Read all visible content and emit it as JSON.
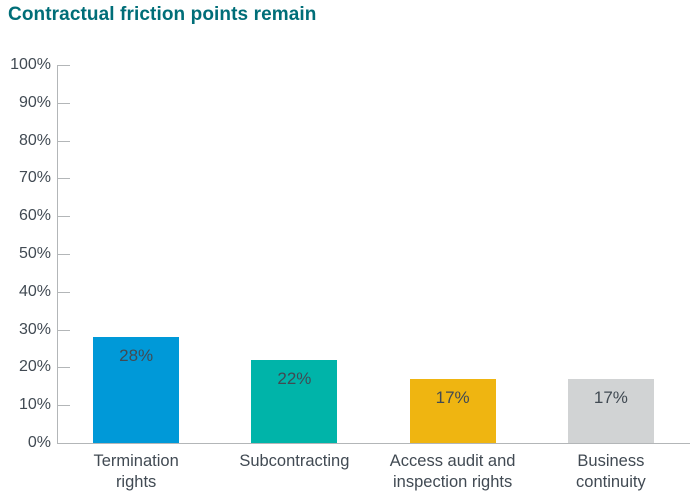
{
  "chart_data": {
    "type": "bar",
    "title": "Contractual friction points remain",
    "categories": [
      "Termination rights",
      "Subcontracting",
      "Access audit and inspection rights",
      "Business continuity"
    ],
    "category_label_lines": [
      [
        "Termination",
        "rights"
      ],
      [
        "Subcontracting"
      ],
      [
        "Access audit and",
        "inspection rights"
      ],
      [
        "Business",
        "continuity"
      ]
    ],
    "values": [
      28,
      22,
      17,
      17
    ],
    "value_labels": [
      "28%",
      "22%",
      "17%",
      "17%"
    ],
    "bar_colors": [
      "#0099d8",
      "#00b4a9",
      "#efb511",
      "#d1d3d4"
    ],
    "xlabel": "",
    "ylabel": "",
    "ylim": [
      0,
      100
    ],
    "y_ticks": [
      "0%",
      "10%",
      "20%",
      "30%",
      "40%",
      "50%",
      "60%",
      "70%",
      "80%",
      "90%",
      "100%"
    ],
    "grid": false,
    "legend": "none"
  },
  "style": {
    "title_color": "#006e78",
    "text_color": "#414a53",
    "axis_line_color": "#b3b6b8"
  }
}
